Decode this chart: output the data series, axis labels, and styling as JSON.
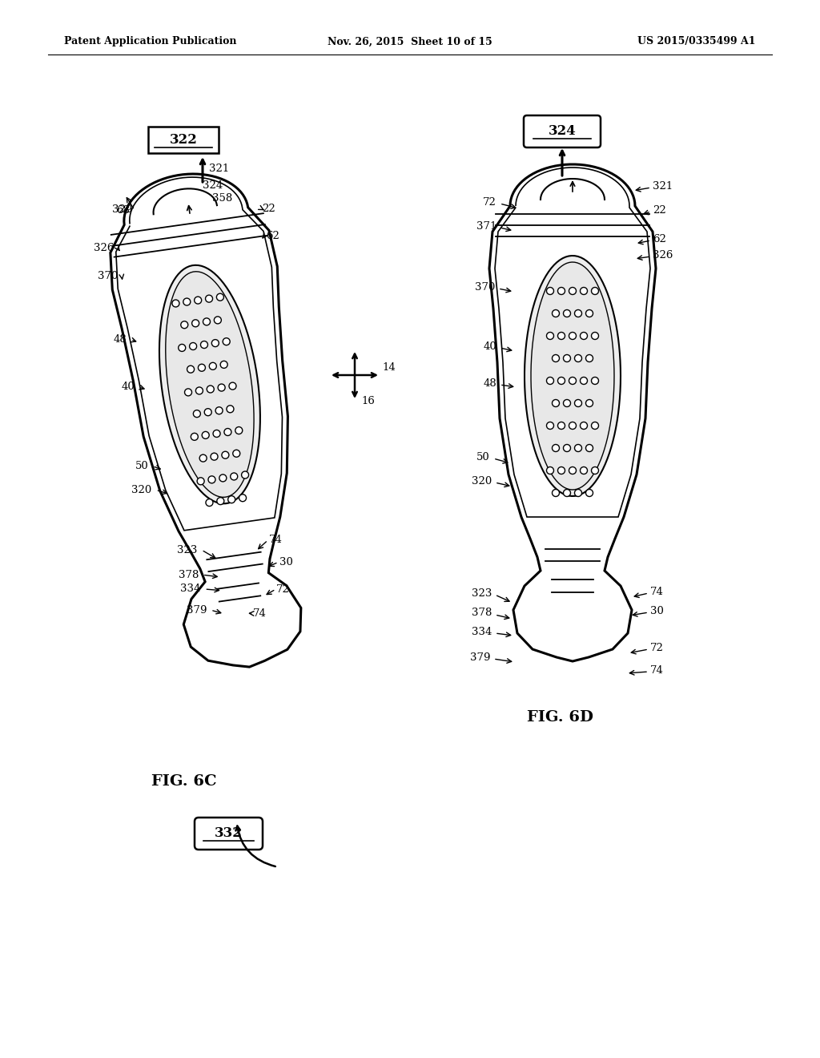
{
  "bg_color": "#ffffff",
  "header_left": "Patent Application Publication",
  "header_mid": "Nov. 26, 2015  Sheet 10 of 15",
  "header_right": "US 2015/0335499 A1",
  "fig6c_label": "FIG. 6C",
  "fig6d_label": "FIG. 6D",
  "label_322": "322",
  "label_324": "324",
  "label_332": "332"
}
